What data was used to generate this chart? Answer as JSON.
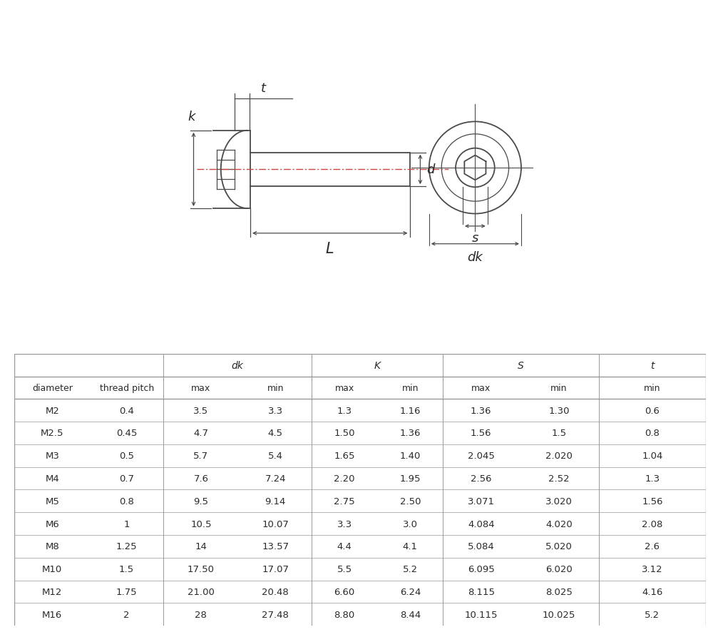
{
  "table_headers_row1_labels": [
    "dk",
    "K",
    "S",
    "t"
  ],
  "table_headers_row2": [
    "diameter",
    "thread pitch",
    "max",
    "min",
    "max",
    "min",
    "max",
    "min",
    "min"
  ],
  "table_data": [
    [
      "M2",
      "0.4",
      "3.5",
      "3.3",
      "1.3",
      "1.16",
      "1.36",
      "1.30",
      "0.6"
    ],
    [
      "M2.5",
      "0.45",
      "4.7",
      "4.5",
      "1.50",
      "1.36",
      "1.56",
      "1.5",
      "0.8"
    ],
    [
      "M3",
      "0.5",
      "5.7",
      "5.4",
      "1.65",
      "1.40",
      "2.045",
      "2.020",
      "1.04"
    ],
    [
      "M4",
      "0.7",
      "7.6",
      "7.24",
      "2.20",
      "1.95",
      "2.56",
      "2.52",
      "1.3"
    ],
    [
      "M5",
      "0.8",
      "9.5",
      "9.14",
      "2.75",
      "2.50",
      "3.071",
      "3.020",
      "1.56"
    ],
    [
      "M6",
      "1",
      "10.5",
      "10.07",
      "3.3",
      "3.0",
      "4.084",
      "4.020",
      "2.08"
    ],
    [
      "M8",
      "1.25",
      "14",
      "13.57",
      "4.4",
      "4.1",
      "5.084",
      "5.020",
      "2.6"
    ],
    [
      "M10",
      "1.5",
      "17.50",
      "17.07",
      "5.5",
      "5.2",
      "6.095",
      "6.020",
      "3.12"
    ],
    [
      "M12",
      "1.75",
      "21.00",
      "20.48",
      "6.60",
      "6.24",
      "8.115",
      "8.025",
      "4.16"
    ],
    [
      "M16",
      "2",
      "28",
      "27.48",
      "8.80",
      "8.44",
      "10.115",
      "10.025",
      "5.2"
    ]
  ],
  "bg_color": "#ffffff",
  "line_color": "#4a4a4a",
  "centerline_color": "#cc4444",
  "text_color": "#2a2a2a",
  "table_line_color": "#999999",
  "dim_label_fontsize": 13,
  "table_fontsize": 9.5
}
